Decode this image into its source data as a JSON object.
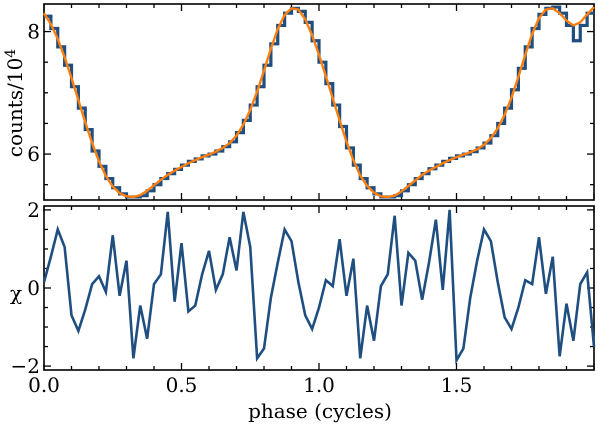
{
  "chart_data": [
    {
      "type": "line",
      "ylabel_main": "counts/10",
      "ylabel_exp": "4",
      "xlim": [
        0.0,
        2.0
      ],
      "ylim": [
        5.25,
        8.45
      ],
      "yticks": [
        {
          "value": 6,
          "label": "6"
        },
        {
          "value": 8,
          "label": "8"
        }
      ],
      "colors": {
        "data": "#1f4e80",
        "model": "#ff7f0e"
      },
      "series": [
        {
          "style": "step",
          "x": [
            0.0,
            0.025,
            0.05,
            0.075,
            0.1,
            0.125,
            0.15,
            0.175,
            0.2,
            0.225,
            0.25,
            0.275,
            0.3,
            0.325,
            0.35,
            0.375,
            0.4,
            0.425,
            0.45,
            0.475,
            0.5,
            0.525,
            0.55,
            0.575,
            0.6,
            0.625,
            0.65,
            0.675,
            0.7,
            0.725,
            0.75,
            0.775,
            0.8,
            0.825,
            0.85,
            0.875,
            0.9,
            0.925,
            0.95,
            0.975,
            1.0,
            1.025,
            1.05,
            1.075,
            1.1,
            1.125,
            1.15,
            1.175,
            1.2,
            1.225,
            1.25,
            1.275,
            1.3,
            1.325,
            1.35,
            1.375,
            1.4,
            1.425,
            1.45,
            1.475,
            1.5,
            1.525,
            1.55,
            1.575,
            1.6,
            1.625,
            1.65,
            1.675,
            1.7,
            1.725,
            1.75,
            1.775,
            1.8,
            1.825,
            1.85,
            1.875,
            1.9,
            1.925,
            1.95,
            1.975
          ],
          "values": [
            8.25,
            8.05,
            7.75,
            7.45,
            7.1,
            6.75,
            6.4,
            6.05,
            5.8,
            5.6,
            5.45,
            5.35,
            5.3,
            5.3,
            5.32,
            5.4,
            5.5,
            5.6,
            5.68,
            5.75,
            5.82,
            5.88,
            5.92,
            5.97,
            6.0,
            6.05,
            6.12,
            6.2,
            6.35,
            6.55,
            6.8,
            7.1,
            7.45,
            7.8,
            8.1,
            8.3,
            8.38,
            8.33,
            8.15,
            7.85,
            7.5,
            7.15,
            6.8,
            6.45,
            6.1,
            5.82,
            5.6,
            5.45,
            5.35,
            5.3,
            5.3,
            5.32,
            5.4,
            5.5,
            5.6,
            5.68,
            5.76,
            5.82,
            5.88,
            5.93,
            5.97,
            6.0,
            6.04,
            6.1,
            6.18,
            6.3,
            6.5,
            6.75,
            7.05,
            7.4,
            7.75,
            8.05,
            8.28,
            8.38,
            8.4,
            8.3,
            8.1,
            7.85,
            8.1,
            8.3
          ]
        },
        {
          "style": "smooth",
          "x": [
            0.0,
            0.025,
            0.05,
            0.075,
            0.1,
            0.125,
            0.15,
            0.175,
            0.2,
            0.225,
            0.25,
            0.275,
            0.3,
            0.325,
            0.35,
            0.375,
            0.4,
            0.425,
            0.45,
            0.475,
            0.5,
            0.525,
            0.55,
            0.575,
            0.6,
            0.625,
            0.65,
            0.675,
            0.7,
            0.725,
            0.75,
            0.775,
            0.8,
            0.825,
            0.85,
            0.875,
            0.9,
            0.925,
            0.95,
            0.975,
            1.0,
            1.025,
            1.05,
            1.075,
            1.1,
            1.125,
            1.15,
            1.175,
            1.2,
            1.225,
            1.25,
            1.275,
            1.3,
            1.325,
            1.35,
            1.375,
            1.4,
            1.425,
            1.45,
            1.475,
            1.5,
            1.525,
            1.55,
            1.575,
            1.6,
            1.625,
            1.65,
            1.675,
            1.7,
            1.725,
            1.75,
            1.775,
            1.8,
            1.825,
            1.85,
            1.875,
            1.9,
            1.925,
            1.95,
            1.975,
            2.0
          ],
          "values": [
            8.3,
            8.12,
            7.88,
            7.58,
            7.24,
            6.88,
            6.52,
            6.18,
            5.88,
            5.64,
            5.47,
            5.36,
            5.31,
            5.3,
            5.33,
            5.4,
            5.49,
            5.58,
            5.66,
            5.73,
            5.79,
            5.85,
            5.9,
            5.95,
            5.99,
            6.04,
            6.1,
            6.18,
            6.3,
            6.48,
            6.72,
            7.02,
            7.36,
            7.72,
            8.04,
            8.27,
            8.38,
            8.36,
            8.2,
            7.94,
            7.62,
            7.27,
            6.91,
            6.55,
            6.2,
            5.9,
            5.65,
            5.48,
            5.37,
            5.31,
            5.3,
            5.32,
            5.39,
            5.48,
            5.57,
            5.66,
            5.73,
            5.79,
            5.85,
            5.9,
            5.95,
            5.99,
            6.03,
            6.08,
            6.15,
            6.26,
            6.42,
            6.64,
            6.92,
            7.26,
            7.62,
            7.96,
            8.22,
            8.36,
            8.38,
            8.3,
            8.18,
            8.1,
            8.15,
            8.28,
            8.4
          ]
        }
      ]
    },
    {
      "type": "line",
      "ylabel": "χ",
      "xlabel": "phase (cycles)",
      "xlim": [
        0.0,
        2.0
      ],
      "ylim": [
        -2.1,
        2.1
      ],
      "xticks": [
        {
          "value": 0.0,
          "label": "0.0"
        },
        {
          "value": 0.5,
          "label": "0.5"
        },
        {
          "value": 1.0,
          "label": "1.0"
        },
        {
          "value": 1.5,
          "label": "1.5"
        }
      ],
      "yticks": [
        {
          "value": -2,
          "label": "−2"
        },
        {
          "value": 0,
          "label": "0"
        },
        {
          "value": 2,
          "label": "2"
        }
      ],
      "colors": {
        "data": "#1f4e80"
      },
      "series": [
        {
          "x": [
            0.0,
            0.025,
            0.05,
            0.075,
            0.1,
            0.125,
            0.15,
            0.175,
            0.2,
            0.225,
            0.25,
            0.275,
            0.3,
            0.325,
            0.35,
            0.375,
            0.4,
            0.425,
            0.45,
            0.475,
            0.5,
            0.525,
            0.55,
            0.575,
            0.6,
            0.625,
            0.65,
            0.675,
            0.7,
            0.725,
            0.75,
            0.775,
            0.8,
            0.825,
            0.85,
            0.875,
            0.9,
            0.925,
            0.95,
            0.975,
            1.0,
            1.025,
            1.05,
            1.075,
            1.1,
            1.125,
            1.15,
            1.175,
            1.2,
            1.225,
            1.25,
            1.275,
            1.3,
            1.325,
            1.35,
            1.375,
            1.4,
            1.425,
            1.45,
            1.475,
            1.5,
            1.525,
            1.55,
            1.575,
            1.6,
            1.625,
            1.65,
            1.675,
            1.7,
            1.725,
            1.75,
            1.775,
            1.8,
            1.825,
            1.85,
            1.875,
            1.9,
            1.925,
            1.95,
            1.975,
            2.0
          ],
          "values": [
            0.15,
            0.8,
            1.5,
            1.05,
            -0.7,
            -1.1,
            -0.55,
            0.1,
            0.3,
            -0.1,
            1.35,
            -0.2,
            0.7,
            -1.8,
            -0.45,
            -1.3,
            0.1,
            0.35,
            1.95,
            -0.35,
            1.15,
            -0.6,
            -0.45,
            0.35,
            0.95,
            -0.05,
            0.35,
            1.3,
            0.45,
            1.95,
            1.05,
            -1.8,
            -1.55,
            -0.25,
            0.65,
            1.5,
            1.2,
            0.15,
            -0.7,
            -1.05,
            -0.5,
            0.2,
            0.05,
            1.25,
            -0.2,
            0.75,
            -1.8,
            -0.45,
            -1.35,
            0.05,
            0.35,
            1.85,
            -0.45,
            0.9,
            0.7,
            -0.3,
            0.65,
            1.75,
            -0.05,
            2.0,
            -1.85,
            -1.55,
            -0.25,
            0.7,
            1.5,
            1.2,
            0.15,
            -0.75,
            -1.05,
            -0.5,
            0.2,
            0.1,
            1.3,
            -0.15,
            0.8,
            -1.75,
            -0.4,
            -1.35,
            0.1,
            0.4,
            -1.5
          ]
        }
      ]
    }
  ]
}
